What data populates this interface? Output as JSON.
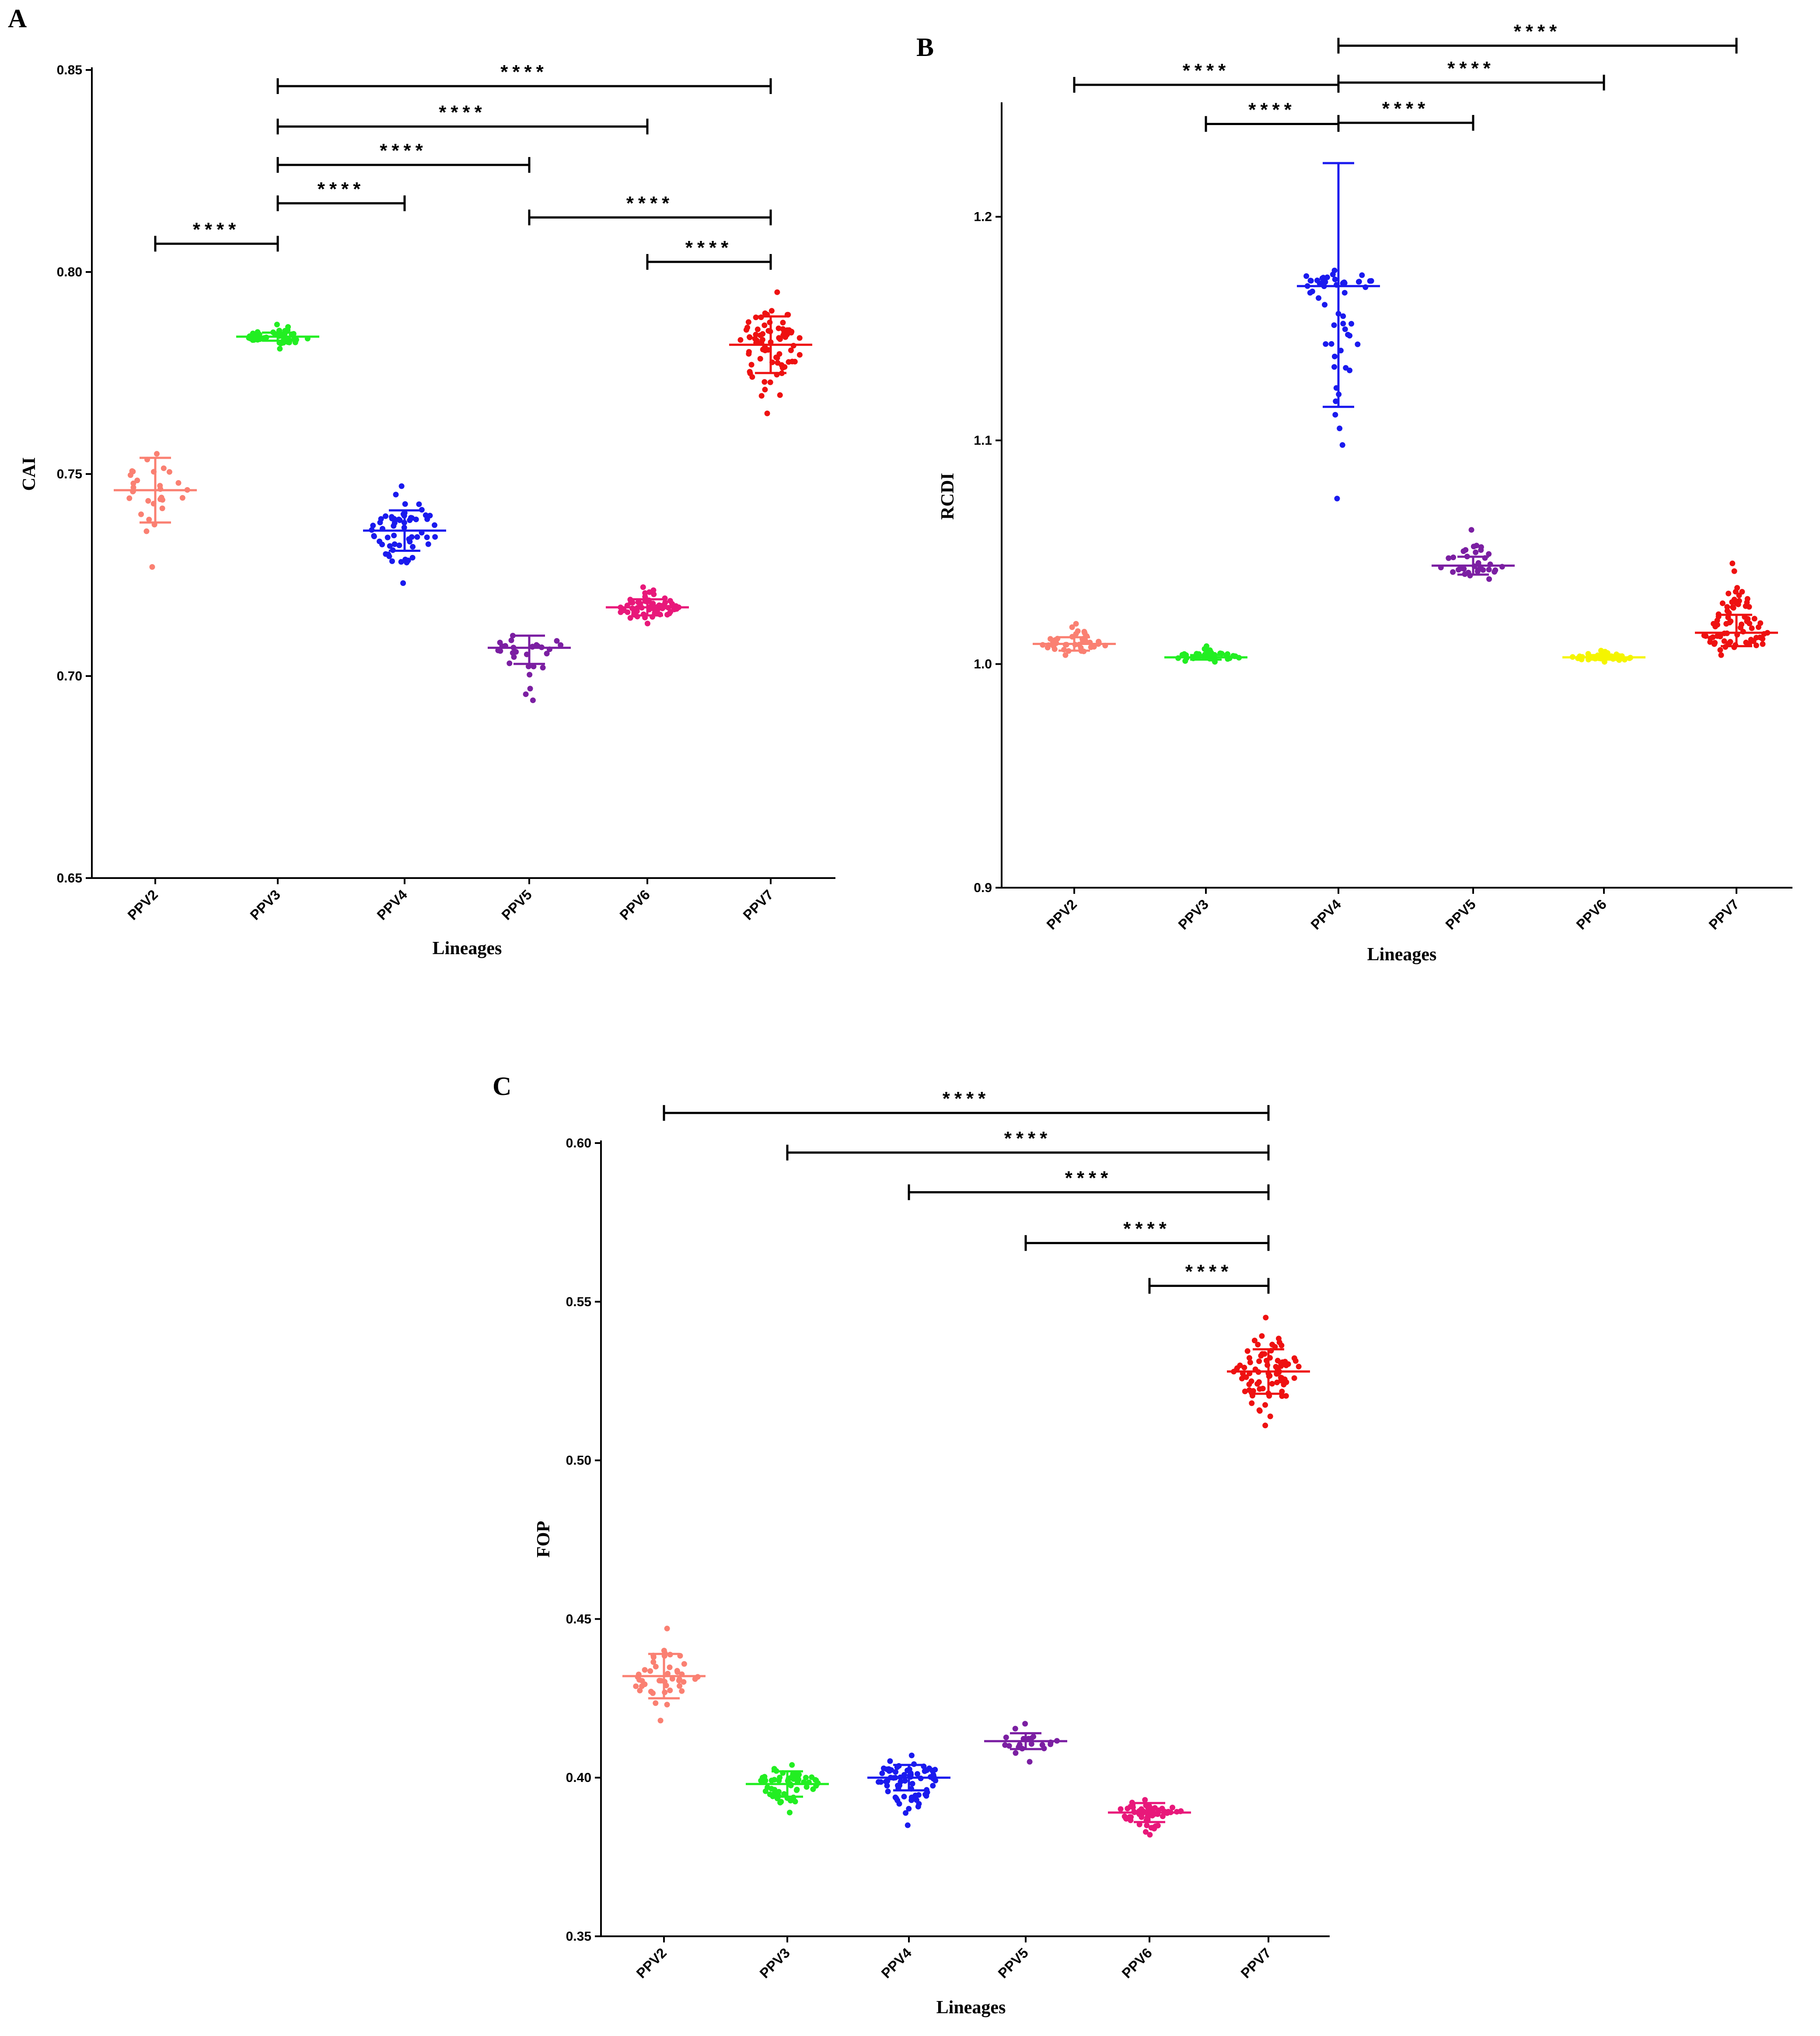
{
  "chart_data": [
    {
      "type": "scatter",
      "panel_label": "A",
      "xlabel": "Lineages",
      "ylabel": "CAI",
      "ylim": [
        0.65,
        0.85
      ],
      "yticks": [
        "0.65",
        "0.70",
        "0.75",
        "0.80",
        "0.85"
      ],
      "categories": [
        "PPV2",
        "PPV3",
        "PPV4",
        "PPV5",
        "PPV6",
        "PPV7"
      ],
      "colors": [
        "#fa8072",
        "#22ee22",
        "#1a1aee",
        "#7b1fa2",
        "#e8187a",
        "#ee1111"
      ],
      "series": [
        {
          "name": "PPV2",
          "mean": 0.746,
          "lower": 0.738,
          "upper": 0.754,
          "min": 0.727,
          "max": 0.755,
          "n": 30
        },
        {
          "name": "PPV3",
          "mean": 0.784,
          "lower": 0.783,
          "upper": 0.785,
          "min": 0.781,
          "max": 0.787,
          "n": 45
        },
        {
          "name": "PPV4",
          "mean": 0.736,
          "lower": 0.731,
          "upper": 0.741,
          "min": 0.723,
          "max": 0.747,
          "n": 60
        },
        {
          "name": "PPV5",
          "mean": 0.707,
          "lower": 0.703,
          "upper": 0.71,
          "min": 0.694,
          "max": 0.71,
          "n": 30
        },
        {
          "name": "PPV6",
          "mean": 0.717,
          "lower": 0.715,
          "upper": 0.719,
          "min": 0.713,
          "max": 0.722,
          "n": 70
        },
        {
          "name": "PPV7",
          "mean": 0.782,
          "lower": 0.775,
          "upper": 0.789,
          "min": 0.765,
          "max": 0.795,
          "n": 75
        }
      ],
      "comparisons": [
        {
          "from": "PPV3",
          "to": "PPV7",
          "label": "****",
          "y": 0.846
        },
        {
          "from": "PPV3",
          "to": "PPV6",
          "label": "****",
          "y": 0.836
        },
        {
          "from": "PPV3",
          "to": "PPV5",
          "label": "****",
          "y": 0.8265
        },
        {
          "from": "PPV3",
          "to": "PPV4",
          "label": "****",
          "y": 0.817
        },
        {
          "from": "PPV5",
          "to": "PPV7",
          "label": "****",
          "y": 0.8135
        },
        {
          "from": "PPV2",
          "to": "PPV3",
          "label": "****",
          "y": 0.807
        },
        {
          "from": "PPV6",
          "to": "PPV7",
          "label": "****",
          "y": 0.8025
        }
      ]
    },
    {
      "type": "scatter",
      "panel_label": "B",
      "xlabel": "Lineages",
      "ylabel": "RCDI",
      "ylim": [
        0.9,
        1.25
      ],
      "yticks": [
        "0.9",
        "1.0",
        "1.1",
        "1.2"
      ],
      "categories": [
        "PPV2",
        "PPV3",
        "PPV4",
        "PPV5",
        "PPV6",
        "PPV7"
      ],
      "colors": [
        "#fa8072",
        "#22ee22",
        "#1a1aee",
        "#7b1fa2",
        "#f5f500",
        "#ee1111"
      ],
      "series": [
        {
          "name": "PPV2",
          "mean": 1.009,
          "lower": 1.006,
          "upper": 1.012,
          "min": 1.004,
          "max": 1.018,
          "n": 40
        },
        {
          "name": "PPV3",
          "mean": 1.003,
          "lower": 1.002,
          "upper": 1.004,
          "min": 1.001,
          "max": 1.008,
          "n": 40
        },
        {
          "name": "PPV4",
          "mean": 1.169,
          "lower": 1.115,
          "upper": 1.224,
          "min": 1.074,
          "max": 1.176,
          "n": 55
        },
        {
          "name": "PPV5",
          "mean": 1.044,
          "lower": 1.04,
          "upper": 1.048,
          "min": 1.038,
          "max": 1.06,
          "n": 35
        },
        {
          "name": "PPV6",
          "mean": 1.003,
          "lower": 1.002,
          "upper": 1.004,
          "min": 1.001,
          "max": 1.006,
          "n": 40
        },
        {
          "name": "PPV7",
          "mean": 1.014,
          "lower": 1.008,
          "upper": 1.022,
          "min": 1.004,
          "max": 1.045,
          "n": 75
        }
      ],
      "comparisons": [
        {
          "from": "PPV4",
          "to": "PPV7",
          "label": "****",
          "y": 1.2765
        },
        {
          "from": "PPV2",
          "to": "PPV4",
          "label": "****",
          "y": 1.259
        },
        {
          "from": "PPV4",
          "to": "PPV6",
          "label": "****",
          "y": 1.26
        },
        {
          "from": "PPV3",
          "to": "PPV4",
          "label": "****",
          "y": 1.2415
        },
        {
          "from": "PPV4",
          "to": "PPV5",
          "label": "****",
          "y": 1.242
        }
      ]
    },
    {
      "type": "scatter",
      "panel_label": "C",
      "xlabel": "Lineages",
      "ylabel": "FOP",
      "ylim": [
        0.35,
        0.6
      ],
      "yticks": [
        "0.35",
        "0.40",
        "0.45",
        "0.50",
        "0.55",
        "0.60"
      ],
      "categories": [
        "PPV2",
        "PPV3",
        "PPV4",
        "PPV5",
        "PPV6",
        "PPV7"
      ],
      "colors": [
        "#fa8072",
        "#22ee22",
        "#1a1aee",
        "#7b1fa2",
        "#e8187a",
        "#ee1111"
      ],
      "series": [
        {
          "name": "PPV2",
          "mean": 0.432,
          "lower": 0.425,
          "upper": 0.439,
          "min": 0.418,
          "max": 0.447,
          "n": 45
        },
        {
          "name": "PPV3",
          "mean": 0.398,
          "lower": 0.394,
          "upper": 0.402,
          "min": 0.389,
          "max": 0.404,
          "n": 60
        },
        {
          "name": "PPV4",
          "mean": 0.4,
          "lower": 0.396,
          "upper": 0.404,
          "min": 0.385,
          "max": 0.407,
          "n": 70
        },
        {
          "name": "PPV5",
          "mean": 0.4115,
          "lower": 0.409,
          "upper": 0.414,
          "min": 0.405,
          "max": 0.417,
          "n": 20
        },
        {
          "name": "PPV6",
          "mean": 0.389,
          "lower": 0.386,
          "upper": 0.392,
          "min": 0.382,
          "max": 0.393,
          "n": 60
        },
        {
          "name": "PPV7",
          "mean": 0.528,
          "lower": 0.521,
          "upper": 0.535,
          "min": 0.511,
          "max": 0.545,
          "n": 80
        }
      ],
      "comparisons": [
        {
          "from": "PPV2",
          "to": "PPV7",
          "label": "****",
          "y": 0.6095
        },
        {
          "from": "PPV3",
          "to": "PPV7",
          "label": "****",
          "y": 0.597
        },
        {
          "from": "PPV4",
          "to": "PPV7",
          "label": "****",
          "y": 0.5845
        },
        {
          "from": "PPV5",
          "to": "PPV7",
          "label": "****",
          "y": 0.5685
        },
        {
          "from": "PPV6",
          "to": "PPV7",
          "label": "****",
          "y": 0.555
        }
      ]
    }
  ]
}
